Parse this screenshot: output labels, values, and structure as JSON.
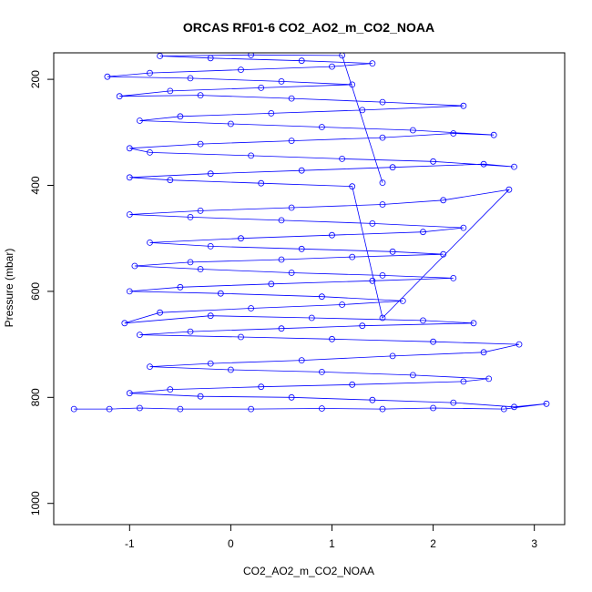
{
  "chart_data": {
    "type": "line",
    "title": "ORCAS RF01-6 CO2_AO2_m_CO2_NOAA",
    "xlabel": "CO2_AO2_m_CO2_NOAA",
    "ylabel": "Pressure (mbar)",
    "xlim": [
      -1.75,
      3.3
    ],
    "ylim": [
      150,
      1040
    ],
    "y_reversed": true,
    "x_ticks": [
      -1,
      0,
      1,
      2,
      3
    ],
    "x_tick_labels": [
      "-1",
      "0",
      "1",
      "2",
      "3"
    ],
    "y_ticks": [
      200,
      400,
      600,
      800,
      1000
    ],
    "y_tick_labels": [
      "200",
      "400",
      "600",
      "800",
      "1000"
    ],
    "grid": false,
    "series": [
      {
        "color": "#0000ff",
        "marker": "open-circle",
        "line": true,
        "points": [
          [
            -1.55,
            822
          ],
          [
            -1.2,
            822
          ],
          [
            -0.9,
            820
          ],
          [
            -0.5,
            822
          ],
          [
            0.2,
            822
          ],
          [
            0.9,
            821
          ],
          [
            1.5,
            822
          ],
          [
            2.0,
            820
          ],
          [
            2.7,
            822
          ],
          [
            3.12,
            812
          ],
          [
            2.8,
            818
          ],
          [
            2.2,
            810
          ],
          [
            1.4,
            805
          ],
          [
            0.6,
            800
          ],
          [
            -0.3,
            798
          ],
          [
            -1.0,
            792
          ],
          [
            -0.6,
            785
          ],
          [
            0.3,
            780
          ],
          [
            1.2,
            776
          ],
          [
            2.3,
            770
          ],
          [
            2.55,
            765
          ],
          [
            1.8,
            758
          ],
          [
            0.9,
            752
          ],
          [
            0.0,
            748
          ],
          [
            -0.8,
            742
          ],
          [
            -0.2,
            736
          ],
          [
            0.7,
            730
          ],
          [
            1.6,
            722
          ],
          [
            2.5,
            715
          ],
          [
            2.85,
            700
          ],
          [
            2.0,
            695
          ],
          [
            1.0,
            690
          ],
          [
            0.1,
            686
          ],
          [
            -0.9,
            682
          ],
          [
            -0.4,
            676
          ],
          [
            0.5,
            670
          ],
          [
            1.3,
            665
          ],
          [
            2.4,
            660
          ],
          [
            1.9,
            655
          ],
          [
            0.8,
            650
          ],
          [
            -0.2,
            646
          ],
          [
            -1.05,
            660
          ],
          [
            -0.7,
            640
          ],
          [
            0.2,
            632
          ],
          [
            1.1,
            625
          ],
          [
            1.7,
            618
          ],
          [
            0.9,
            610
          ],
          [
            -0.1,
            604
          ],
          [
            -1.0,
            600
          ],
          [
            -0.5,
            592
          ],
          [
            0.4,
            586
          ],
          [
            1.4,
            580
          ],
          [
            2.2,
            575
          ],
          [
            1.5,
            570
          ],
          [
            0.6,
            565
          ],
          [
            -0.3,
            558
          ],
          [
            -0.95,
            552
          ],
          [
            -0.4,
            545
          ],
          [
            0.5,
            540
          ],
          [
            1.2,
            535
          ],
          [
            2.1,
            530
          ],
          [
            1.6,
            525
          ],
          [
            0.7,
            520
          ],
          [
            -0.2,
            515
          ],
          [
            -0.8,
            508
          ],
          [
            0.1,
            500
          ],
          [
            1.0,
            494
          ],
          [
            1.9,
            488
          ],
          [
            2.3,
            480
          ],
          [
            1.4,
            472
          ],
          [
            0.5,
            466
          ],
          [
            -0.4,
            460
          ],
          [
            -1.0,
            455
          ],
          [
            -0.3,
            448
          ],
          [
            0.6,
            442
          ],
          [
            1.5,
            436
          ],
          [
            2.1,
            428
          ],
          [
            2.75,
            408
          ],
          [
            1.5,
            650
          ],
          [
            1.2,
            402
          ],
          [
            0.3,
            396
          ],
          [
            -0.6,
            390
          ],
          [
            -1.0,
            385
          ],
          [
            -0.2,
            378
          ],
          [
            0.7,
            372
          ],
          [
            1.6,
            366
          ],
          [
            2.5,
            360
          ],
          [
            2.8,
            365
          ],
          [
            2.0,
            355
          ],
          [
            1.1,
            350
          ],
          [
            0.2,
            344
          ],
          [
            -0.8,
            338
          ],
          [
            -1.0,
            330
          ],
          [
            -0.3,
            322
          ],
          [
            0.6,
            316
          ],
          [
            1.5,
            310
          ],
          [
            2.2,
            302
          ],
          [
            2.6,
            305
          ],
          [
            1.8,
            296
          ],
          [
            0.9,
            290
          ],
          [
            0.0,
            284
          ],
          [
            -0.9,
            278
          ],
          [
            -0.5,
            270
          ],
          [
            0.4,
            264
          ],
          [
            1.3,
            258
          ],
          [
            2.3,
            250
          ],
          [
            1.5,
            243
          ],
          [
            0.6,
            236
          ],
          [
            -0.3,
            230
          ],
          [
            -1.1,
            232
          ],
          [
            -0.6,
            222
          ],
          [
            0.3,
            216
          ],
          [
            1.2,
            210
          ],
          [
            0.5,
            204
          ],
          [
            -0.4,
            198
          ],
          [
            -1.22,
            195
          ],
          [
            -0.8,
            188
          ],
          [
            0.1,
            182
          ],
          [
            1.0,
            176
          ],
          [
            1.4,
            170
          ],
          [
            0.7,
            165
          ],
          [
            -0.2,
            160
          ],
          [
            -0.7,
            156
          ],
          [
            0.2,
            154
          ],
          [
            1.1,
            155
          ],
          [
            1.5,
            395
          ]
        ]
      }
    ]
  }
}
